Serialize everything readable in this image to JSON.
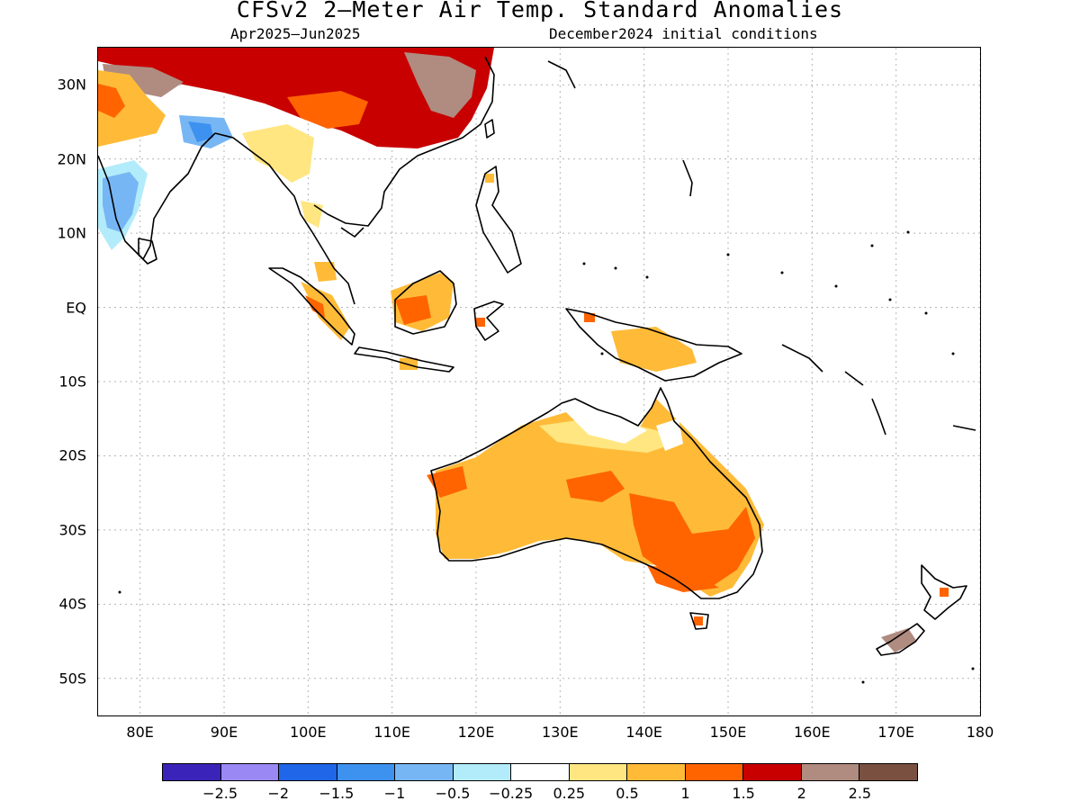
{
  "title": "CFSv2 2–Meter Air Temp. Standard Anomalies",
  "subtitle_left": "Apr2025–Jun2025",
  "subtitle_right": "December2024 initial conditions",
  "chart_data": {
    "type": "heatmap",
    "variable": "2-meter air temperature standard anomaly",
    "lat_labels": [
      "30N",
      "20N",
      "10N",
      "EQ",
      "10S",
      "20S",
      "30S",
      "40S",
      "50S"
    ],
    "lon_labels": [
      "80E",
      "90E",
      "100E",
      "110E",
      "120E",
      "130E",
      "140E",
      "150E",
      "160E",
      "170E",
      "180"
    ],
    "lon_range": [
      75,
      180
    ],
    "lat_range": [
      -55,
      35
    ],
    "grid": true,
    "colorbar": {
      "labels": [
        "−2.5",
        "−2",
        "−1.5",
        "−1",
        "−0.5",
        "−0.25",
        "0.25",
        "0.5",
        "1",
        "1.5",
        "2",
        "2.5"
      ],
      "colors": [
        "#3a23b8",
        "#9a88f5",
        "#1f66e8",
        "#3d92f0",
        "#77b6f4",
        "#b2ecfa",
        "#ffffff",
        "#ffe680",
        "#ffbb38",
        "#ff6400",
        "#c80000",
        "#b08b80",
        "#7a5040"
      ]
    },
    "regions": [
      {
        "region": "Australia interior",
        "anomaly_class": "0.5 to 1"
      },
      {
        "region": "SE Australia / Victoria",
        "anomaly_class": "1 to 1.5"
      },
      {
        "region": "Tasmania (local)",
        "anomaly_class": "1 to 1.5"
      },
      {
        "region": "Northern Australia coast",
        "anomaly_class": "-0.25 to 0.5"
      },
      {
        "region": "Southern China",
        "anomaly_class": "1.5 to 2"
      },
      {
        "region": "Tibetan Plateau / central China (patches)",
        "anomaly_class": "2 to 2.5"
      },
      {
        "region": "India (west coast)",
        "anomaly_class": "0.5 to 1"
      },
      {
        "region": "Central India",
        "anomaly_class": "-1 to -0.5"
      },
      {
        "region": "Bangladesh / NE India",
        "anomaly_class": "-1.5 to -1"
      },
      {
        "region": "Myanmar / Thailand",
        "anomaly_class": "0.25 to 0.5"
      },
      {
        "region": "Borneo",
        "anomaly_class": "0.5 to 1.5"
      },
      {
        "region": "Sumatra",
        "anomaly_class": "0.5 to 1"
      },
      {
        "region": "New Guinea",
        "anomaly_class": "0.5 to 1"
      },
      {
        "region": "New Zealand South Island",
        "anomaly_class": "2 to 2.5"
      }
    ]
  }
}
